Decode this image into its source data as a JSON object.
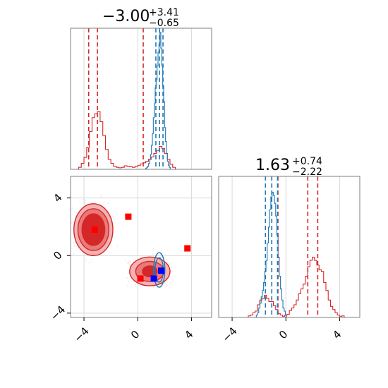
{
  "chart_data": {
    "type": "corner",
    "colors": {
      "blue": "#1f77b4",
      "red": "#d62728",
      "marker_red": "#ff0000",
      "marker_blue": "#0000ff",
      "grid": "#d9d9d9",
      "frame": "#7f7f7f"
    },
    "xlim": [
      -5,
      5.5
    ],
    "ylim": [
      -4.3,
      5.5
    ],
    "ticks": [
      -4,
      0,
      4
    ],
    "tick_labels": [
      "−4",
      "0",
      "4"
    ],
    "param1_title": {
      "main": "−3.00",
      "sup": "+3.41",
      "sub": "−0.65"
    },
    "param2_title": {
      "main": "1.63",
      "sup": "+0.74",
      "sub": "−2.22"
    },
    "hist1": {
      "red_quantiles": [
        -3.65,
        -3.0,
        0.41
      ],
      "blue_quantiles": [
        1.35,
        1.62,
        1.88
      ],
      "red": {
        "x0": -4.4,
        "dx": 0.2,
        "counts": [
          0.2,
          0.6,
          1.2,
          2.2,
          3.8,
          5.2,
          5.6,
          5.8,
          4.8,
          3.4,
          2.0,
          1.0,
          0.6,
          0.3,
          0.2,
          0.15,
          0.2,
          0.35,
          0.3,
          0.25,
          0.2,
          0.3,
          0.4,
          0.55,
          0.65,
          0.8,
          1.0,
          1.25,
          1.6,
          1.9,
          2.3,
          2.1,
          1.6,
          1.0,
          0.5,
          0.2
        ]
      },
      "blue": {
        "x0": 0.6,
        "dx": 0.07,
        "counts": [
          0.1,
          0.2,
          0.3,
          0.6,
          1.0,
          1.5,
          2.4,
          3.6,
          5.2,
          6.6,
          8.2,
          9.0,
          10.4,
          11.8,
          12.6,
          13.8,
          12.2,
          10.4,
          8.4,
          6.8,
          4.2,
          2.8,
          1.6,
          0.8,
          0.4,
          0.2
        ]
      },
      "ymax": 14.2
    },
    "hist2": {
      "red_quantiles": [
        -0.59,
        1.63,
        2.37
      ],
      "blue_quantiles": [
        -1.52,
        -1.05,
        -0.62
      ],
      "red": {
        "x0": -2.8,
        "dx": 0.17,
        "counts": [
          0.2,
          0.3,
          0.6,
          0.8,
          1.6,
          2.2,
          2.4,
          2.8,
          2.4,
          2.0,
          2.0,
          1.5,
          1.0,
          0.5,
          0.3,
          0.15,
          0.3,
          0.4,
          0.9,
          1.2,
          1.6,
          2.2,
          3.0,
          3.6,
          4.2,
          5.2,
          6.4,
          7.2,
          7.6,
          7.2,
          6.6,
          6.0,
          5.8,
          4.4,
          3.4,
          2.2,
          1.4,
          1.0,
          0.6,
          0.3,
          0.15,
          0.2
        ]
      },
      "blue": {
        "x0": -2.2,
        "dx": 0.09,
        "counts": [
          0.3,
          0.6,
          1.2,
          1.8,
          2.6,
          3.4,
          4.4,
          5.8,
          7.2,
          9.4,
          11.4,
          13.6,
          15.2,
          15.8,
          15.4,
          14.4,
          12.8,
          10.4,
          7.6,
          5.2,
          3.6,
          2.2,
          1.2,
          0.8,
          0.3
        ]
      },
      "ymax": 17.8
    },
    "contour_red_cluster1": {
      "center": [
        -3.3,
        1.8
      ],
      "radii": [
        [
          1.45,
          1.8
        ],
        [
          1.15,
          1.45
        ],
        [
          0.85,
          1.1
        ]
      ]
    },
    "contour_red_cluster2": {
      "center": [
        0.9,
        -1.1
      ],
      "radii": [
        [
          1.5,
          1.0
        ],
        [
          1.05,
          0.7
        ],
        [
          0.55,
          0.38
        ]
      ]
    },
    "contour_blue": {
      "center": [
        1.6,
        -1.0
      ],
      "radii": [
        [
          0.42,
          1.2
        ],
        [
          0.3,
          0.85
        ]
      ]
    },
    "red_markers": [
      [
        -3.2,
        1.8
      ],
      [
        -0.7,
        2.7
      ],
      [
        3.7,
        0.5
      ],
      [
        0.2,
        -1.6
      ]
    ],
    "blue_markers": [
      [
        1.75,
        -1.05
      ],
      [
        1.2,
        -1.6
      ]
    ]
  }
}
